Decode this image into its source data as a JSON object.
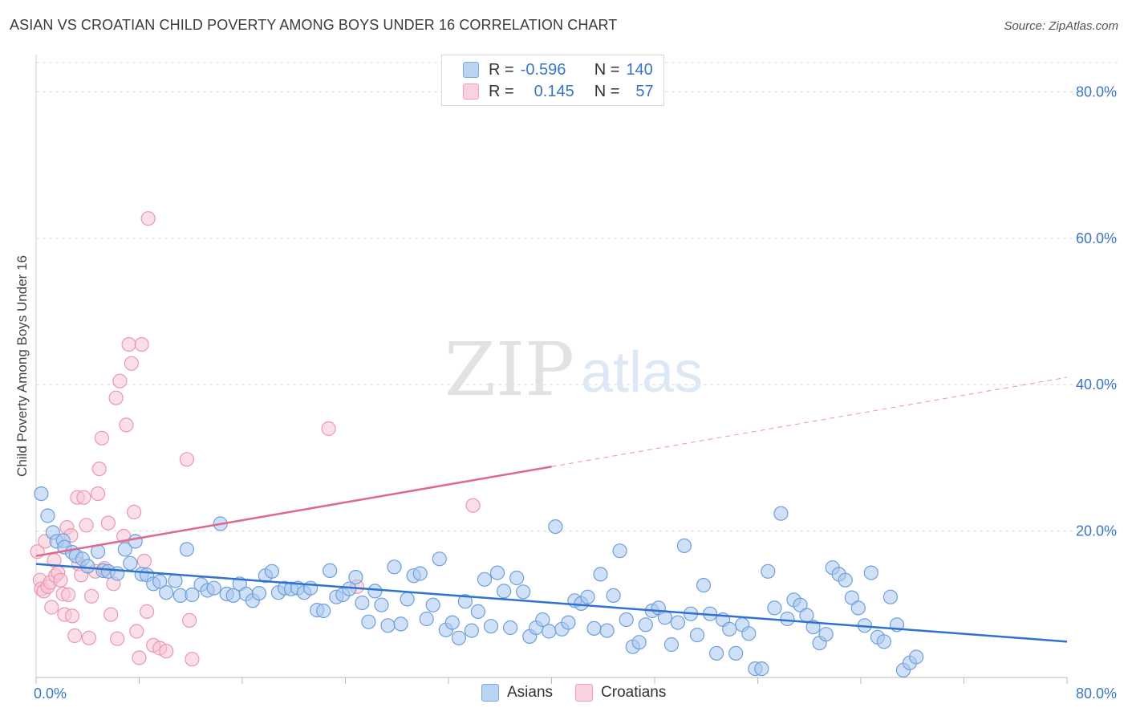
{
  "header": {
    "title": "ASIAN VS CROATIAN CHILD POVERTY AMONG BOYS UNDER 16 CORRELATION CHART",
    "source": "Source: ZipAtlas.com"
  },
  "watermark": {
    "zip": "ZIP",
    "atlas": "atlas"
  },
  "legend_top": {
    "rows": [
      {
        "r_label": "R =",
        "r_value": "-0.596",
        "n_label": "N =",
        "n_value": "140"
      },
      {
        "r_label": "R =",
        "r_value": "0.145",
        "n_label": "N =",
        "n_value": "57"
      }
    ]
  },
  "legend_bottom": {
    "asians": "Asians",
    "croatians": "Croatians"
  },
  "colors": {
    "asian_fill": "#a9c8f0",
    "asian_stroke": "#6e9fdb",
    "asian_line": "#2f72cf",
    "croatian_fill": "#f7c5d4",
    "croatian_stroke": "#ec97b2",
    "croatian_line": "#e0678f",
    "axis_text": "#3a74c8",
    "grid": "#dddddd"
  },
  "chart_data": {
    "type": "scatter",
    "title": "ASIAN VS CROATIAN CHILD POVERTY AMONG BOYS UNDER 16 CORRELATION CHART",
    "xlabel": "",
    "ylabel": "Child Poverty Among Boys Under 16",
    "xlim": [
      0,
      80
    ],
    "ylim": [
      0,
      84
    ],
    "x_tick_labels": [
      "0.0%",
      "80.0%"
    ],
    "y_ticks": [
      20,
      40,
      60,
      80
    ],
    "y_tick_labels": [
      "20.0%",
      "40.0%",
      "60.0%",
      "80.0%"
    ],
    "grid": true,
    "legend_position": "top-center",
    "series": [
      {
        "name": "Asians",
        "r": -0.596,
        "n": 140,
        "trend": {
          "x": [
            0,
            80
          ],
          "y": [
            15.5,
            4.9
          ]
        },
        "points": [
          [
            0.4,
            25.1
          ],
          [
            0.9,
            22.1
          ],
          [
            1.3,
            19.8
          ],
          [
            1.6,
            18.6
          ],
          [
            2.1,
            18.7
          ],
          [
            2.2,
            17.8
          ],
          [
            2.8,
            17.1
          ],
          [
            3.1,
            16.6
          ],
          [
            3.6,
            16.2
          ],
          [
            4.0,
            15.2
          ],
          [
            4.8,
            17.2
          ],
          [
            5.2,
            14.6
          ],
          [
            5.6,
            14.5
          ],
          [
            6.3,
            14.2
          ],
          [
            6.9,
            17.5
          ],
          [
            7.3,
            15.6
          ],
          [
            7.7,
            18.6
          ],
          [
            8.2,
            14.1
          ],
          [
            8.6,
            14.0
          ],
          [
            9.1,
            12.8
          ],
          [
            9.6,
            13.1
          ],
          [
            10.1,
            11.6
          ],
          [
            10.8,
            13.2
          ],
          [
            11.2,
            11.2
          ],
          [
            11.7,
            17.5
          ],
          [
            12.1,
            11.3
          ],
          [
            12.8,
            12.7
          ],
          [
            13.3,
            11.9
          ],
          [
            13.8,
            12.2
          ],
          [
            14.3,
            21.0
          ],
          [
            14.8,
            11.4
          ],
          [
            15.3,
            11.2
          ],
          [
            15.8,
            12.8
          ],
          [
            16.3,
            11.4
          ],
          [
            16.8,
            10.5
          ],
          [
            17.3,
            11.5
          ],
          [
            17.8,
            13.9
          ],
          [
            18.3,
            14.5
          ],
          [
            18.8,
            11.6
          ],
          [
            19.3,
            12.2
          ],
          [
            19.8,
            12.1
          ],
          [
            20.3,
            12.2
          ],
          [
            20.8,
            11.6
          ],
          [
            21.3,
            12.2
          ],
          [
            21.8,
            9.2
          ],
          [
            22.3,
            9.1
          ],
          [
            22.8,
            14.6
          ],
          [
            23.3,
            11.0
          ],
          [
            23.8,
            11.3
          ],
          [
            24.3,
            12.1
          ],
          [
            24.8,
            13.7
          ],
          [
            25.3,
            10.2
          ],
          [
            25.8,
            7.6
          ],
          [
            26.3,
            11.8
          ],
          [
            26.8,
            9.9
          ],
          [
            27.3,
            7.1
          ],
          [
            27.8,
            15.1
          ],
          [
            28.3,
            7.3
          ],
          [
            28.8,
            10.7
          ],
          [
            29.3,
            13.9
          ],
          [
            29.8,
            14.2
          ],
          [
            30.3,
            8.0
          ],
          [
            30.8,
            9.9
          ],
          [
            31.3,
            16.2
          ],
          [
            31.8,
            6.5
          ],
          [
            32.3,
            7.5
          ],
          [
            32.8,
            5.4
          ],
          [
            33.3,
            10.4
          ],
          [
            33.8,
            6.4
          ],
          [
            34.3,
            9.0
          ],
          [
            34.8,
            13.4
          ],
          [
            35.3,
            7.0
          ],
          [
            35.8,
            14.3
          ],
          [
            36.3,
            11.8
          ],
          [
            36.8,
            6.8
          ],
          [
            37.3,
            13.6
          ],
          [
            37.8,
            11.7
          ],
          [
            38.3,
            5.6
          ],
          [
            38.8,
            6.8
          ],
          [
            39.3,
            7.9
          ],
          [
            39.8,
            6.3
          ],
          [
            40.3,
            20.6
          ],
          [
            40.8,
            6.6
          ],
          [
            41.3,
            7.5
          ],
          [
            41.8,
            10.5
          ],
          [
            42.3,
            10.1
          ],
          [
            42.8,
            11.0
          ],
          [
            43.3,
            6.7
          ],
          [
            43.8,
            14.1
          ],
          [
            44.3,
            6.4
          ],
          [
            44.8,
            11.2
          ],
          [
            45.3,
            17.3
          ],
          [
            45.8,
            7.9
          ],
          [
            46.3,
            4.2
          ],
          [
            46.8,
            4.8
          ],
          [
            47.3,
            7.2
          ],
          [
            47.8,
            9.1
          ],
          [
            48.3,
            9.5
          ],
          [
            48.8,
            8.2
          ],
          [
            49.3,
            4.5
          ],
          [
            49.8,
            7.5
          ],
          [
            50.3,
            18.0
          ],
          [
            50.8,
            8.7
          ],
          [
            51.3,
            5.8
          ],
          [
            51.8,
            12.6
          ],
          [
            52.3,
            8.7
          ],
          [
            52.8,
            3.3
          ],
          [
            53.3,
            7.9
          ],
          [
            53.8,
            6.6
          ],
          [
            54.3,
            3.3
          ],
          [
            54.8,
            7.2
          ],
          [
            55.3,
            6.0
          ],
          [
            55.8,
            1.2
          ],
          [
            56.3,
            1.2
          ],
          [
            56.8,
            14.5
          ],
          [
            57.3,
            9.5
          ],
          [
            57.8,
            22.4
          ],
          [
            58.3,
            8.0
          ],
          [
            58.8,
            10.6
          ],
          [
            59.3,
            9.9
          ],
          [
            59.8,
            8.5
          ],
          [
            60.3,
            6.9
          ],
          [
            60.8,
            4.7
          ],
          [
            61.3,
            5.9
          ],
          [
            61.8,
            15.0
          ],
          [
            62.3,
            14.1
          ],
          [
            62.8,
            13.3
          ],
          [
            63.3,
            10.9
          ],
          [
            63.8,
            9.5
          ],
          [
            64.3,
            7.1
          ],
          [
            64.8,
            14.3
          ],
          [
            65.3,
            5.5
          ],
          [
            65.8,
            4.9
          ],
          [
            66.3,
            11.0
          ],
          [
            66.8,
            7.2
          ],
          [
            67.3,
            1.0
          ],
          [
            67.8,
            2.0
          ],
          [
            68.3,
            2.8
          ]
        ]
      },
      {
        "name": "Croatians",
        "r": 0.145,
        "n": 57,
        "trend": {
          "x": [
            0,
            40
          ],
          "y": [
            16.6,
            28.8
          ]
        },
        "trend_extension": {
          "x": [
            40,
            80
          ],
          "y": [
            28.8,
            41.0
          ]
        },
        "points": [
          [
            0.1,
            17.2
          ],
          [
            0.3,
            13.3
          ],
          [
            0.4,
            12.1
          ],
          [
            0.6,
            11.8
          ],
          [
            0.9,
            12.4
          ],
          [
            1.1,
            13.0
          ],
          [
            1.2,
            9.6
          ],
          [
            1.4,
            16.0
          ],
          [
            1.5,
            13.9
          ],
          [
            1.7,
            14.3
          ],
          [
            1.9,
            13.3
          ],
          [
            2.1,
            11.4
          ],
          [
            2.2,
            8.6
          ],
          [
            2.4,
            20.5
          ],
          [
            2.5,
            11.3
          ],
          [
            2.7,
            19.4
          ],
          [
            2.8,
            8.4
          ],
          [
            3.0,
            5.7
          ],
          [
            3.2,
            24.6
          ],
          [
            3.3,
            15.5
          ],
          [
            3.5,
            14.0
          ],
          [
            3.7,
            24.6
          ],
          [
            3.9,
            20.8
          ],
          [
            4.1,
            5.4
          ],
          [
            4.3,
            11.1
          ],
          [
            4.6,
            14.5
          ],
          [
            4.8,
            25.1
          ],
          [
            4.9,
            28.5
          ],
          [
            5.1,
            32.7
          ],
          [
            5.3,
            14.9
          ],
          [
            5.6,
            21.1
          ],
          [
            5.8,
            8.6
          ],
          [
            6.0,
            12.8
          ],
          [
            6.2,
            38.2
          ],
          [
            6.3,
            5.3
          ],
          [
            6.5,
            40.5
          ],
          [
            6.8,
            19.3
          ],
          [
            7.0,
            34.5
          ],
          [
            7.2,
            45.5
          ],
          [
            7.4,
            42.9
          ],
          [
            7.6,
            22.6
          ],
          [
            7.8,
            6.3
          ],
          [
            8.0,
            2.7
          ],
          [
            8.2,
            45.5
          ],
          [
            8.4,
            15.9
          ],
          [
            8.6,
            9.0
          ],
          [
            8.7,
            62.7
          ],
          [
            9.1,
            4.4
          ],
          [
            9.6,
            4.0
          ],
          [
            10.1,
            3.6
          ],
          [
            11.7,
            29.8
          ],
          [
            11.9,
            7.8
          ],
          [
            12.1,
            2.5
          ],
          [
            22.7,
            34.0
          ],
          [
            24.9,
            12.4
          ],
          [
            33.9,
            23.5
          ],
          [
            0.7,
            18.6
          ]
        ]
      }
    ]
  }
}
